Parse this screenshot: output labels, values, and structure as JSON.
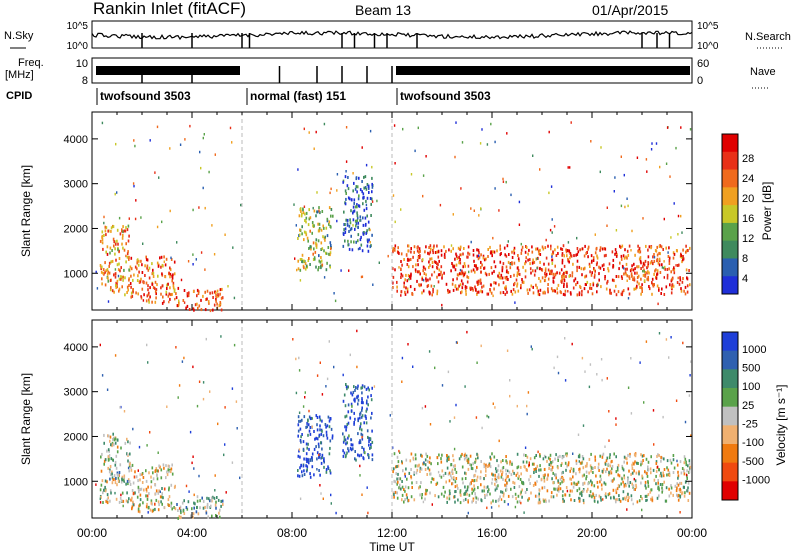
{
  "header": {
    "station": "Rankin Inlet (fitACF)",
    "beam": "Beam 13",
    "date": "01/Apr/2015"
  },
  "strip_panels": {
    "nsky_label": "N.Sky",
    "nsky_ticks": [
      "10^5",
      "10^0"
    ],
    "nsearch_label": "N.Search",
    "nsearch_ticks": [
      "10^5",
      "10^0"
    ],
    "freq_label": "Freq.",
    "freq_unit": "[MHz]",
    "freq_ticks": [
      "10",
      "8"
    ],
    "nave_label": "Nave",
    "nave_ticks": [
      "60",
      "0"
    ],
    "cpid_label": "CPID",
    "cpid_segments": [
      {
        "label": "twofsound 3503",
        "start_hour": 0,
        "end_hour": 6
      },
      {
        "label": "normal (fast) 151",
        "start_hour": 6,
        "end_hour": 12
      },
      {
        "label": "twofsound 3503",
        "start_hour": 12,
        "end_hour": 24
      }
    ]
  },
  "colors": {
    "power_scale": [
      "#1f2fd8",
      "#2a5fb0",
      "#3f8a5e",
      "#5aa24a",
      "#c8c828",
      "#f0a020",
      "#f06a1c",
      "#e83018",
      "#e00000"
    ],
    "velocity_scale": [
      "#1f3fd8",
      "#2f60b0",
      "#3e8a6a",
      "#5aa24a",
      "#c0c0c0",
      "#f0b070",
      "#f07a10",
      "#f04a10",
      "#e00000"
    ]
  },
  "chart_data": [
    {
      "type": "heatmap",
      "name": "power",
      "xlabel": "",
      "ylabel": "Slant Range [km]",
      "xlim": [
        0,
        24
      ],
      "ylim": [
        180,
        4600
      ],
      "yticks": [
        1000,
        2000,
        3000,
        4000
      ],
      "colorbar": {
        "label": "Power [dB]",
        "ticks": [
          "4",
          "8",
          "12",
          "16",
          "20",
          "24",
          "28"
        ],
        "range": [
          0,
          30
        ]
      },
      "echo_regions": [
        {
          "t0": 0.3,
          "t1": 1.5,
          "r0": 550,
          "r1": 2100,
          "level": 0.65
        },
        {
          "t0": 1.5,
          "t1": 3.3,
          "r0": 350,
          "r1": 1400,
          "level": 0.75
        },
        {
          "t0": 3.3,
          "t1": 5.2,
          "r0": 200,
          "r1": 700,
          "level": 0.8
        },
        {
          "t0": 8.2,
          "t1": 9.6,
          "r0": 1100,
          "r1": 2500,
          "level": 0.45
        },
        {
          "t0": 10.0,
          "t1": 11.2,
          "r0": 1500,
          "r1": 3200,
          "level": 0.15
        },
        {
          "t0": 12.0,
          "t1": 23.9,
          "r0": 550,
          "r1": 1650,
          "level": 0.8
        }
      ]
    },
    {
      "type": "heatmap",
      "name": "velocity",
      "xlabel": "Time UT",
      "ylabel": "Slant Range [km]",
      "xlim": [
        0,
        24
      ],
      "ylim": [
        180,
        4600
      ],
      "xticks": [
        "00:00",
        "04:00",
        "08:00",
        "12:00",
        "16:00",
        "20:00",
        "00:00"
      ],
      "yticks": [
        1000,
        2000,
        3000,
        4000
      ],
      "colorbar": {
        "label": "Velocity [m s⁻¹]",
        "ticks": [
          "1000",
          "500",
          "100",
          "25",
          "-25",
          "-100",
          "-500",
          "-1000"
        ]
      },
      "echo_regions": [
        {
          "t0": 0.3,
          "t1": 1.5,
          "r0": 550,
          "r1": 2100,
          "level": 0.45
        },
        {
          "t0": 1.5,
          "t1": 3.3,
          "r0": 350,
          "r1": 1400,
          "level": 0.55
        },
        {
          "t0": 3.3,
          "t1": 5.2,
          "r0": 200,
          "r1": 700,
          "level": 0.4
        },
        {
          "t0": 8.2,
          "t1": 9.6,
          "r0": 1100,
          "r1": 2500,
          "level": 0.05
        },
        {
          "t0": 10.0,
          "t1": 11.2,
          "r0": 1500,
          "r1": 3200,
          "level": 0.1
        },
        {
          "t0": 12.0,
          "t1": 23.9,
          "r0": 550,
          "r1": 1650,
          "level": 0.5
        }
      ]
    }
  ]
}
